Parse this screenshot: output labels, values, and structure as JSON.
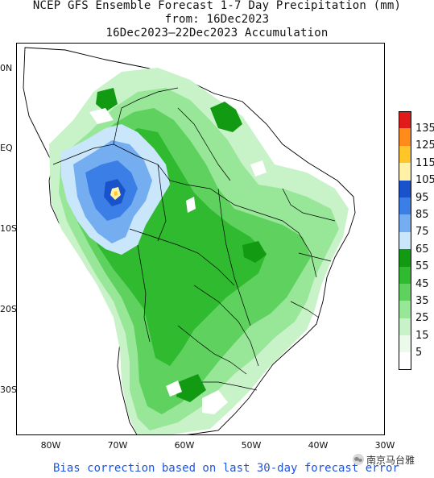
{
  "title": {
    "line1": "NCEP GFS Ensemble Forecast 1-7 Day Precipitation (mm)",
    "line2": "from: 16Dec2023",
    "line3": "16Dec2023–22Dec2023 Accumulation"
  },
  "axes": {
    "lat_labels": [
      "0N",
      "EQ",
      "10S",
      "20S",
      "30S"
    ],
    "lon_labels": [
      "80W",
      "70W",
      "60W",
      "50W",
      "40W",
      "30W"
    ]
  },
  "legend": {
    "levels": [
      {
        "label": "135",
        "color": "#e11a1a"
      },
      {
        "label": "125",
        "color": "#ff8c1a"
      },
      {
        "label": "115",
        "color": "#ffc629"
      },
      {
        "label": "105",
        "color": "#fff2a6"
      },
      {
        "label": "95",
        "color": "#1a52c9"
      },
      {
        "label": "85",
        "color": "#3b7fe6"
      },
      {
        "label": "75",
        "color": "#74aef0"
      },
      {
        "label": "65",
        "color": "#c9e6fb"
      },
      {
        "label": "55",
        "color": "#139a13"
      },
      {
        "label": "45",
        "color": "#2fba2f"
      },
      {
        "label": "35",
        "color": "#5ed15e"
      },
      {
        "label": "25",
        "color": "#98e698"
      },
      {
        "label": "15",
        "color": "#c8f2c8"
      },
      {
        "label": "5",
        "color": "#ecfaec"
      },
      {
        "label": "",
        "color": "#ffffff"
      }
    ]
  },
  "footer": "Bias correction based on last 30-day forecast error",
  "watermark": "南京马台雅"
}
